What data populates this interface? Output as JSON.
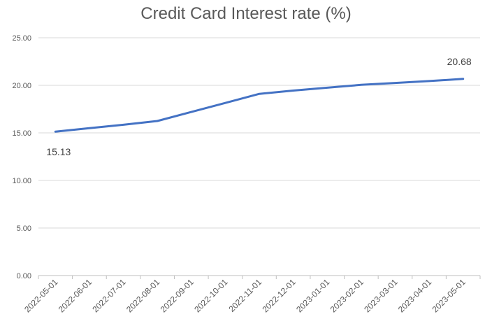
{
  "chart_data": {
    "type": "line",
    "title": "Credit Card Interest rate (%)",
    "xlabel": "",
    "ylabel": "",
    "categories": [
      "2022-05-01",
      "2022-06-01",
      "2022-07-01",
      "2022-08-01",
      "2022-09-01",
      "2022-10-01",
      "2022-11-01",
      "2022-12-01",
      "2023-01-01",
      "2023-02-01",
      "2023-03-01",
      "2023-04-01",
      "2023-05-01"
    ],
    "series": [
      {
        "color": "#4472c4",
        "values": [
          15.13,
          15.5,
          15.85,
          16.25,
          17.2,
          18.15,
          19.1,
          19.45,
          19.75,
          20.05,
          20.25,
          20.45,
          20.68
        ]
      }
    ],
    "ylim": [
      0,
      25
    ],
    "yticks": [
      "0.00",
      "5.00",
      "10.00",
      "15.00",
      "20.00",
      "25.00"
    ],
    "data_labels": [
      {
        "index": 0,
        "text": "15.13"
      },
      {
        "index": 12,
        "text": "20.68"
      }
    ],
    "grid": true,
    "legend": "none"
  }
}
